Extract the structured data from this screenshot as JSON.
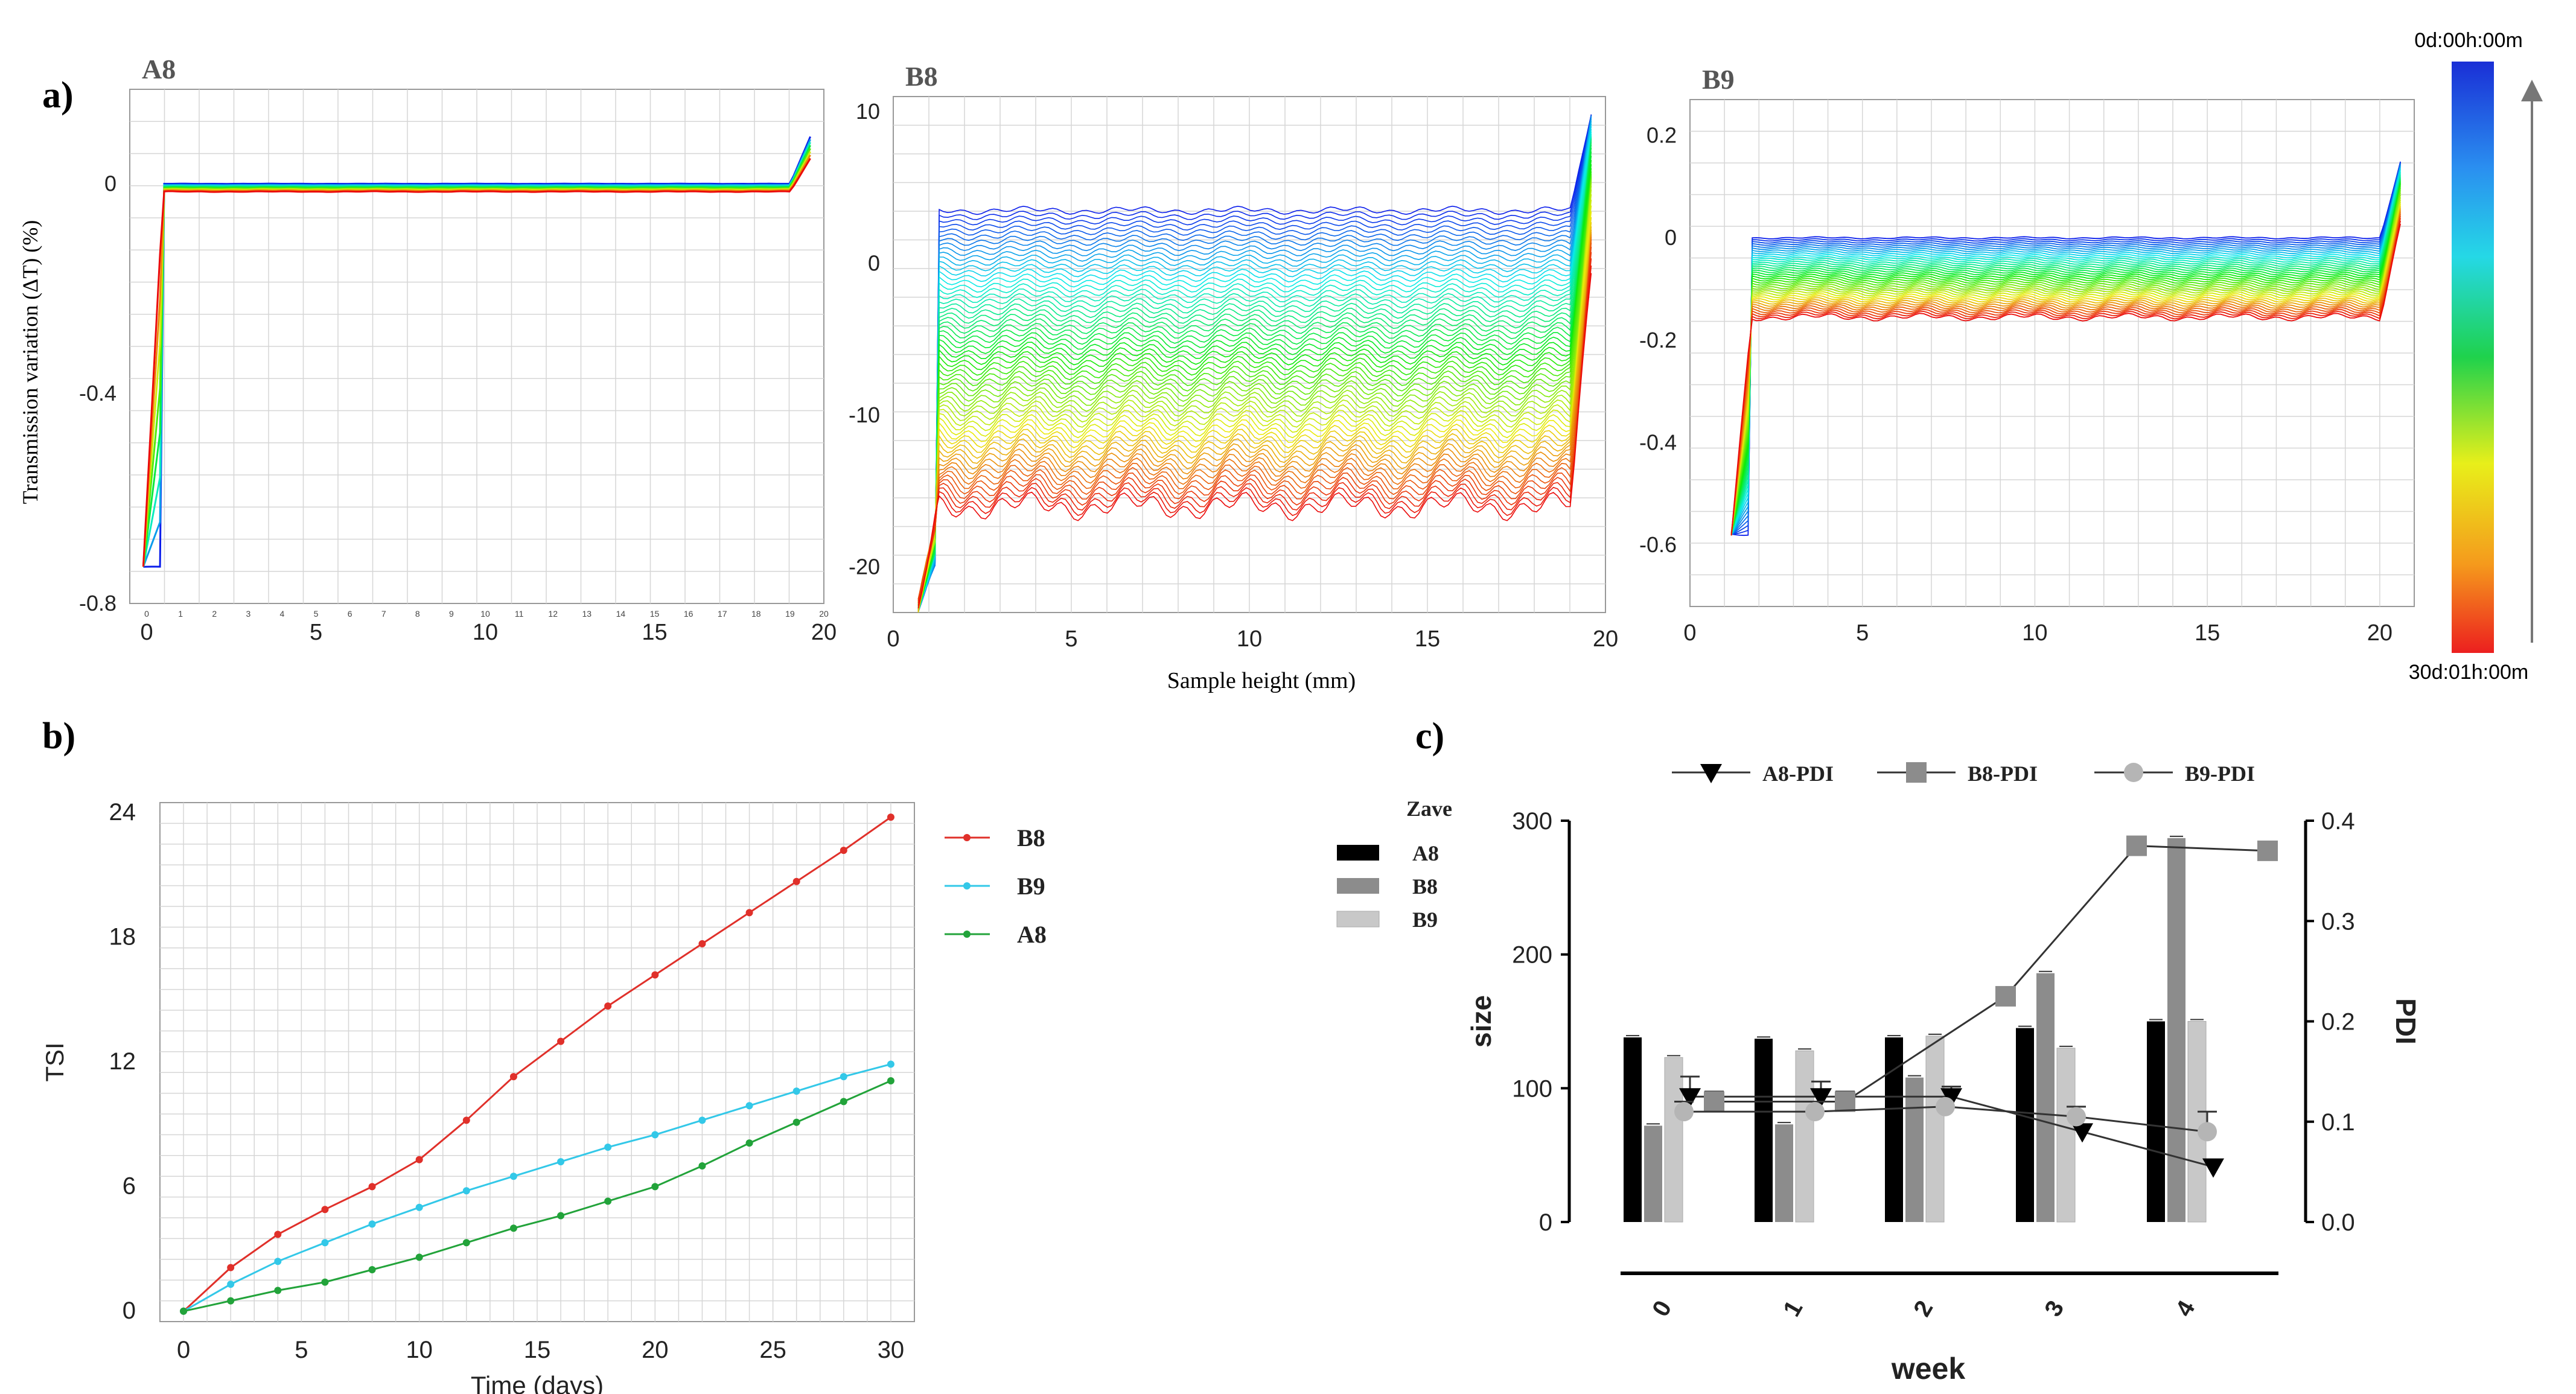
{
  "figure": {
    "panel_a_label": "a)",
    "panel_b_label": "b)",
    "panel_c_label": "c)",
    "shared_ylabel": "Transmission variation (ΔT) (%)",
    "shared_xlabel": "Sample height (mm)",
    "colorbar_top": "0d:00h:00m",
    "colorbar_bottom": "30d:01h:00m"
  },
  "colors": {
    "b8": "#e0302a",
    "b9": "#33c8e8",
    "a8": "#22a33a",
    "a8_bar": "#000000",
    "b8_bar": "#8c8c8c",
    "b9_bar": "#c8c8c8",
    "grid": "#d6d6d6"
  },
  "chart_data": [
    {
      "id": "A8",
      "type": "line",
      "title": "A8",
      "xlabel": "",
      "ylabel": "Transmission variation (ΔT) (%)",
      "xlim": [
        -0.5,
        20
      ],
      "ylim": [
        -0.8,
        0.18
      ],
      "xticks": [
        0,
        5,
        10,
        15,
        20
      ],
      "xtick_labels": [
        "0",
        "5",
        "10",
        "15",
        "20"
      ],
      "minor_xticks": [
        0,
        1,
        2,
        3,
        4,
        5,
        6,
        7,
        8,
        9,
        10,
        11,
        12,
        13,
        14,
        15,
        16,
        17,
        18,
        19,
        20
      ],
      "yticks": [
        0,
        -0.4,
        -0.8
      ],
      "ytick_labels": [
        "0",
        "-0.4",
        "-0.8"
      ],
      "grid": true,
      "profiles": {
        "count": 8,
        "time_range_days": [
          0,
          30
        ],
        "plateau_range": [
          0.0,
          -0.015
        ],
        "edge_low": -0.73,
        "edge_high": 0.09
      }
    },
    {
      "id": "B8",
      "type": "line",
      "title": "B8",
      "xlabel": "Sample height (mm)",
      "ylabel": "",
      "xlim": [
        0,
        20
      ],
      "ylim": [
        -23,
        11
      ],
      "xticks": [
        0,
        5,
        10,
        15,
        20
      ],
      "xtick_labels": [
        "0",
        "5",
        "10",
        "15",
        "20"
      ],
      "yticks": [
        10,
        0,
        -10,
        -20
      ],
      "ytick_labels": [
        "10",
        "0",
        "-10",
        "-20"
      ],
      "grid": true,
      "profiles": {
        "count": 60,
        "time_range_days": [
          0,
          30
        ],
        "plateau_range": [
          3.5,
          -16
        ],
        "edge_low": -23,
        "edge_high": 10
      }
    },
    {
      "id": "B9",
      "type": "line",
      "title": "B9",
      "xlabel": "",
      "ylabel": "",
      "xlim": [
        0,
        21
      ],
      "ylim": [
        -0.72,
        0.27
      ],
      "xticks": [
        0,
        5,
        10,
        15,
        20
      ],
      "xtick_labels": [
        "0",
        "5",
        "10",
        "15",
        "20"
      ],
      "yticks": [
        0.2,
        0,
        -0.2,
        -0.4,
        -0.6
      ],
      "ytick_labels": [
        "0.2",
        "0",
        "-0.2",
        "-0.4",
        "-0.6"
      ],
      "grid": true,
      "profiles": {
        "count": 40,
        "time_range_days": [
          0,
          30
        ],
        "plateau_range": [
          0.0,
          -0.155
        ],
        "edge_low": -0.58,
        "edge_high": 0.15
      }
    },
    {
      "id": "TSI",
      "type": "line",
      "title": "",
      "xlabel": "Time (days)",
      "ylabel": "TSI",
      "xlim": [
        -1,
        31
      ],
      "ylim": [
        -0.5,
        24.5
      ],
      "xticks": [
        0,
        5,
        10,
        15,
        20,
        25,
        30
      ],
      "xtick_labels": [
        "0",
        "5",
        "10",
        "15",
        "20",
        "25",
        "30"
      ],
      "yticks": [
        0,
        6,
        12,
        18,
        24
      ],
      "ytick_labels": [
        "0",
        "6",
        "12",
        "18",
        "24"
      ],
      "grid": true,
      "legend": "right",
      "x": [
        0,
        2,
        4,
        6,
        8,
        10,
        12,
        14,
        16,
        18,
        20,
        22,
        24,
        26,
        28,
        30
      ],
      "series": [
        {
          "name": "B8",
          "values": [
            0,
            2.1,
            3.7,
            4.9,
            6.0,
            7.3,
            9.2,
            11.3,
            13.0,
            14.7,
            16.2,
            17.7,
            19.2,
            20.7,
            22.2,
            23.8
          ]
        },
        {
          "name": "B9",
          "values": [
            0,
            1.3,
            2.4,
            3.3,
            4.2,
            5.0,
            5.8,
            6.5,
            7.2,
            7.9,
            8.5,
            9.2,
            9.9,
            10.6,
            11.3,
            11.9
          ]
        },
        {
          "name": "A8",
          "values": [
            0,
            0.5,
            1.0,
            1.4,
            2.0,
            2.6,
            3.3,
            4.0,
            4.6,
            5.3,
            6.0,
            7.0,
            8.1,
            9.1,
            10.1,
            11.1
          ]
        }
      ]
    },
    {
      "id": "SIZE_PDI",
      "type": "bar",
      "title": "",
      "xlabel": "week",
      "ylabel": "size",
      "ylabel_right": "PDI",
      "ylim": [
        0,
        300
      ],
      "ylim_right": [
        0,
        0.4
      ],
      "yticks": [
        0,
        100,
        200,
        300
      ],
      "ytick_labels": [
        "0",
        "100",
        "200",
        "300"
      ],
      "yticks_right": [
        0.0,
        0.1,
        0.2,
        0.3,
        0.4
      ],
      "ytick_labels_right": [
        "0.0",
        "0.1",
        "0.2",
        "0.3",
        "0.4"
      ],
      "categories": [
        "0",
        "1",
        "2",
        "3",
        "4"
      ],
      "legend_title": "Zave",
      "series": [
        {
          "name": "A8",
          "values": [
            138,
            137,
            138,
            145,
            150
          ]
        },
        {
          "name": "B8",
          "values": [
            72,
            73,
            108,
            186,
            287
          ]
        },
        {
          "name": "B9",
          "values": [
            123,
            128,
            139,
            130,
            150
          ]
        }
      ],
      "pdi_series": [
        {
          "name": "A8-PDI",
          "marker": "triangle-down",
          "values": [
            0.125,
            0.125,
            0.125,
            0.09,
            0.055
          ],
          "errors": [
            0.02,
            0.015,
            0.01,
            0.0,
            0.0
          ]
        },
        {
          "name": "B8-PDI",
          "marker": "square",
          "values": [
            0.12,
            0.12,
            0.225,
            0.375,
            0.37
          ],
          "errors": [
            0.01,
            0.01,
            0.0,
            0.0,
            0.0
          ]
        },
        {
          "name": "B9-PDI",
          "marker": "circle",
          "values": [
            0.11,
            0.11,
            0.115,
            0.105,
            0.09
          ],
          "errors": [
            0.01,
            0.01,
            0.0,
            0.01,
            0.02
          ]
        }
      ]
    }
  ]
}
